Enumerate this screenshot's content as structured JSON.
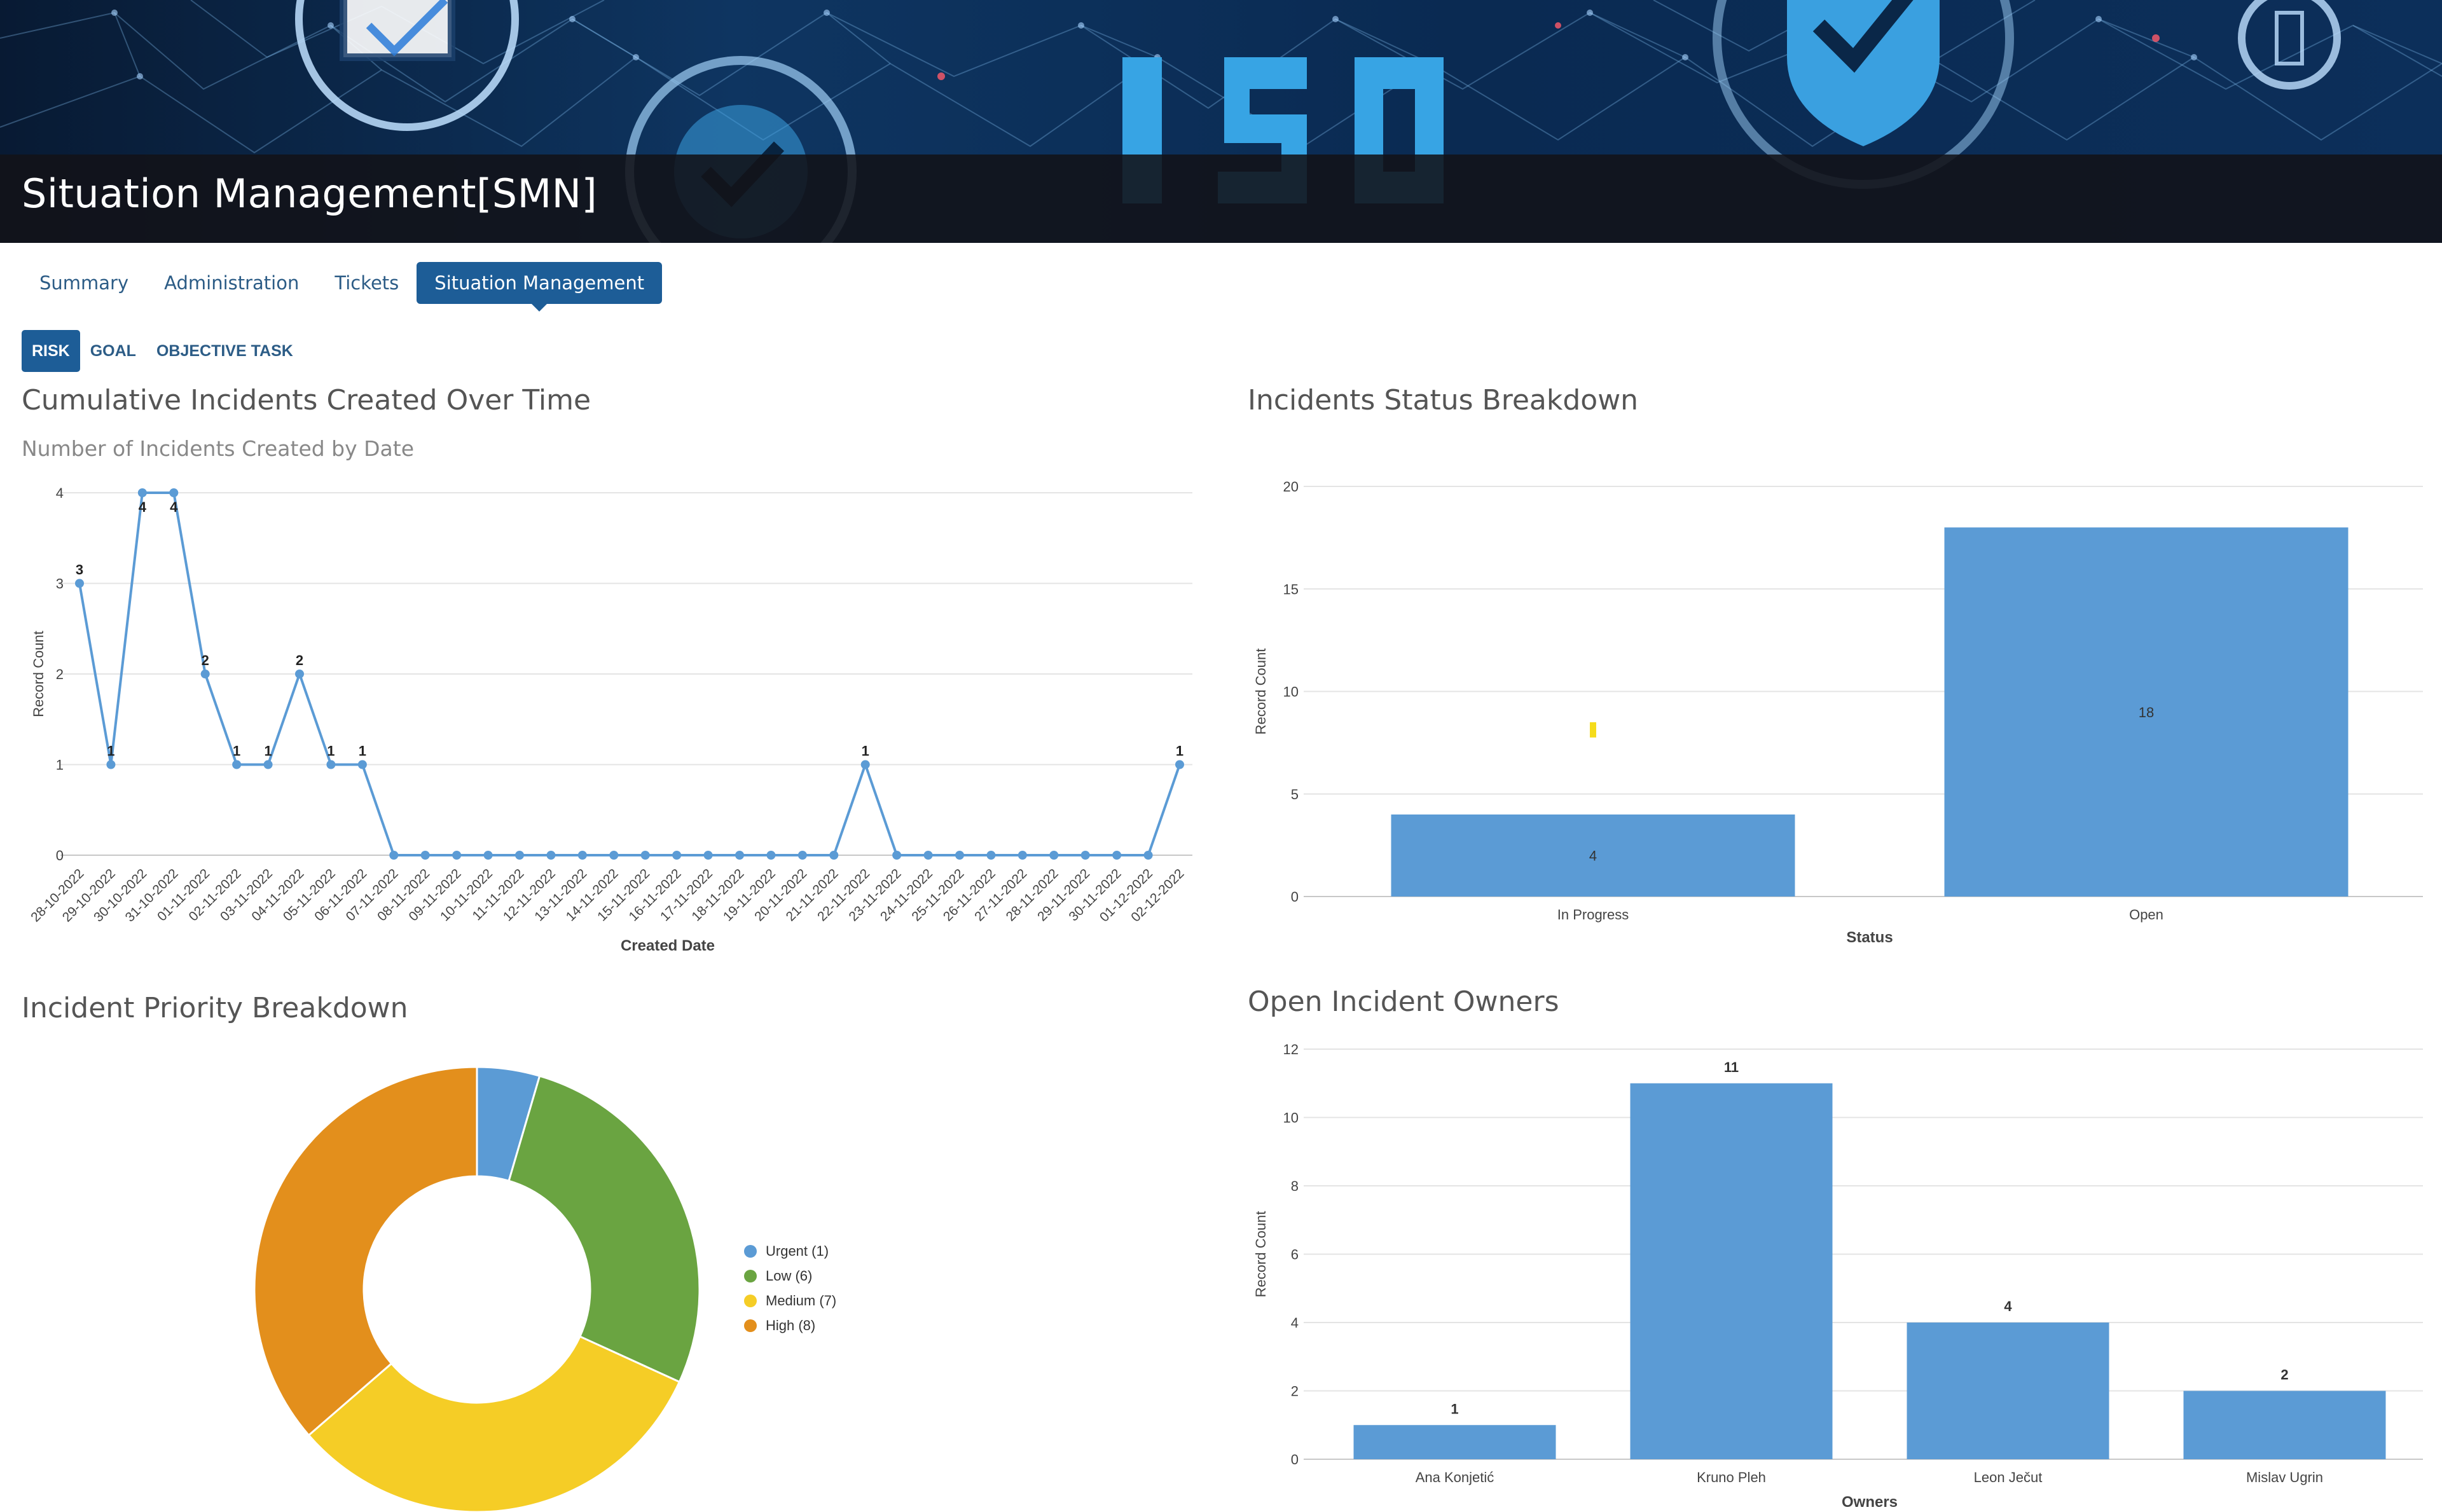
{
  "page": {
    "title": "Situation Management[SMN]"
  },
  "tabs": [
    {
      "label": "Summary",
      "active": false
    },
    {
      "label": "Administration",
      "active": false
    },
    {
      "label": "Tickets",
      "active": false
    },
    {
      "label": "Situation Management",
      "active": true
    }
  ],
  "subtabs": [
    {
      "label": "RISK",
      "active": true
    },
    {
      "label": "GOAL",
      "active": false
    },
    {
      "label": "OBJECTIVE TASK",
      "active": false
    }
  ],
  "colors": {
    "brand": "#1d5d97",
    "bar": "#5b9bd5",
    "urgent": "#5b9bd5",
    "low": "#6aa441",
    "medium": "#f5cd26",
    "high": "#e38f1c",
    "highlight": "#f5dc1b"
  },
  "panels": {
    "cumulative_title": "Cumulative Incidents Created Over Time",
    "cumulative_subtitle": "Number of Incidents Created by Date",
    "status_title": "Incidents Status Breakdown",
    "priority_title": "Incident Priority Breakdown",
    "owners_title": "Open Incident Owners"
  },
  "chart_data": [
    {
      "type": "line",
      "title": "Cumulative Incidents Created Over Time",
      "subtitle": "Number of Incidents Created by Date",
      "xlabel": "Created Date",
      "ylabel": "Record Count",
      "ylim": [
        0,
        4
      ],
      "yticks": [
        0,
        1,
        2,
        3,
        4
      ],
      "grid": true,
      "x": [
        "28-10-2022",
        "29-10-2022",
        "30-10-2022",
        "31-10-2022",
        "01-11-2022",
        "02-11-2022",
        "03-11-2022",
        "04-11-2022",
        "05-11-2022",
        "06-11-2022",
        "07-11-2022",
        "08-11-2022",
        "09-11-2022",
        "10-11-2022",
        "11-11-2022",
        "12-11-2022",
        "13-11-2022",
        "14-11-2022",
        "15-11-2022",
        "16-11-2022",
        "17-11-2022",
        "18-11-2022",
        "19-11-2022",
        "20-11-2022",
        "21-11-2022",
        "22-11-2022",
        "23-11-2022",
        "24-11-2022",
        "25-11-2022",
        "26-11-2022",
        "27-11-2022",
        "28-11-2022",
        "29-11-2022",
        "30-11-2022",
        "01-12-2022",
        "02-12-2022"
      ],
      "values": [
        3,
        1,
        4,
        4,
        2,
        1,
        1,
        2,
        1,
        1,
        0,
        0,
        0,
        0,
        0,
        0,
        0,
        0,
        0,
        0,
        0,
        0,
        0,
        0,
        0,
        1,
        0,
        0,
        0,
        0,
        0,
        0,
        0,
        0,
        0,
        1
      ],
      "data_labels": [
        "3",
        "1",
        "4",
        "4",
        "2",
        "1",
        "1",
        "2",
        "1",
        "1",
        "",
        "",
        "",
        "",
        "",
        "",
        "",
        "",
        "",
        "",
        "",
        "",
        "",
        "",
        "",
        "1",
        "",
        "",
        "",
        "",
        "",
        "",
        "",
        "",
        "",
        "1"
      ]
    },
    {
      "type": "bar",
      "title": "Incidents Status Breakdown",
      "xlabel": "Status",
      "ylabel": "Record Count",
      "ylim": [
        0,
        20
      ],
      "yticks": [
        0,
        5,
        10,
        15,
        20
      ],
      "grid": true,
      "categories": [
        "In Progress",
        "Open"
      ],
      "values": [
        4,
        18
      ]
    },
    {
      "type": "pie",
      "title": "Incident Priority Breakdown",
      "donut": true,
      "legend": "right",
      "slices": [
        {
          "label": "Urgent",
          "value": 1,
          "legend_text": "Urgent (1)",
          "color": "#5b9bd5"
        },
        {
          "label": "Low",
          "value": 6,
          "legend_text": "Low (6)",
          "color": "#6aa441"
        },
        {
          "label": "Medium",
          "value": 7,
          "legend_text": "Medium (7)",
          "color": "#f5cd26"
        },
        {
          "label": "High",
          "value": 8,
          "legend_text": "High (8)",
          "color": "#e38f1c"
        }
      ]
    },
    {
      "type": "bar",
      "title": "Open Incident Owners",
      "xlabel": "Owners",
      "ylabel": "Record Count",
      "ylim": [
        0,
        12
      ],
      "yticks": [
        0,
        2,
        4,
        6,
        8,
        10,
        12
      ],
      "grid": true,
      "categories": [
        "Ana Konjetić",
        "Kruno Pleh",
        "Leon Ječut",
        "Mislav Ugrin"
      ],
      "values": [
        1,
        11,
        4,
        2
      ]
    }
  ]
}
